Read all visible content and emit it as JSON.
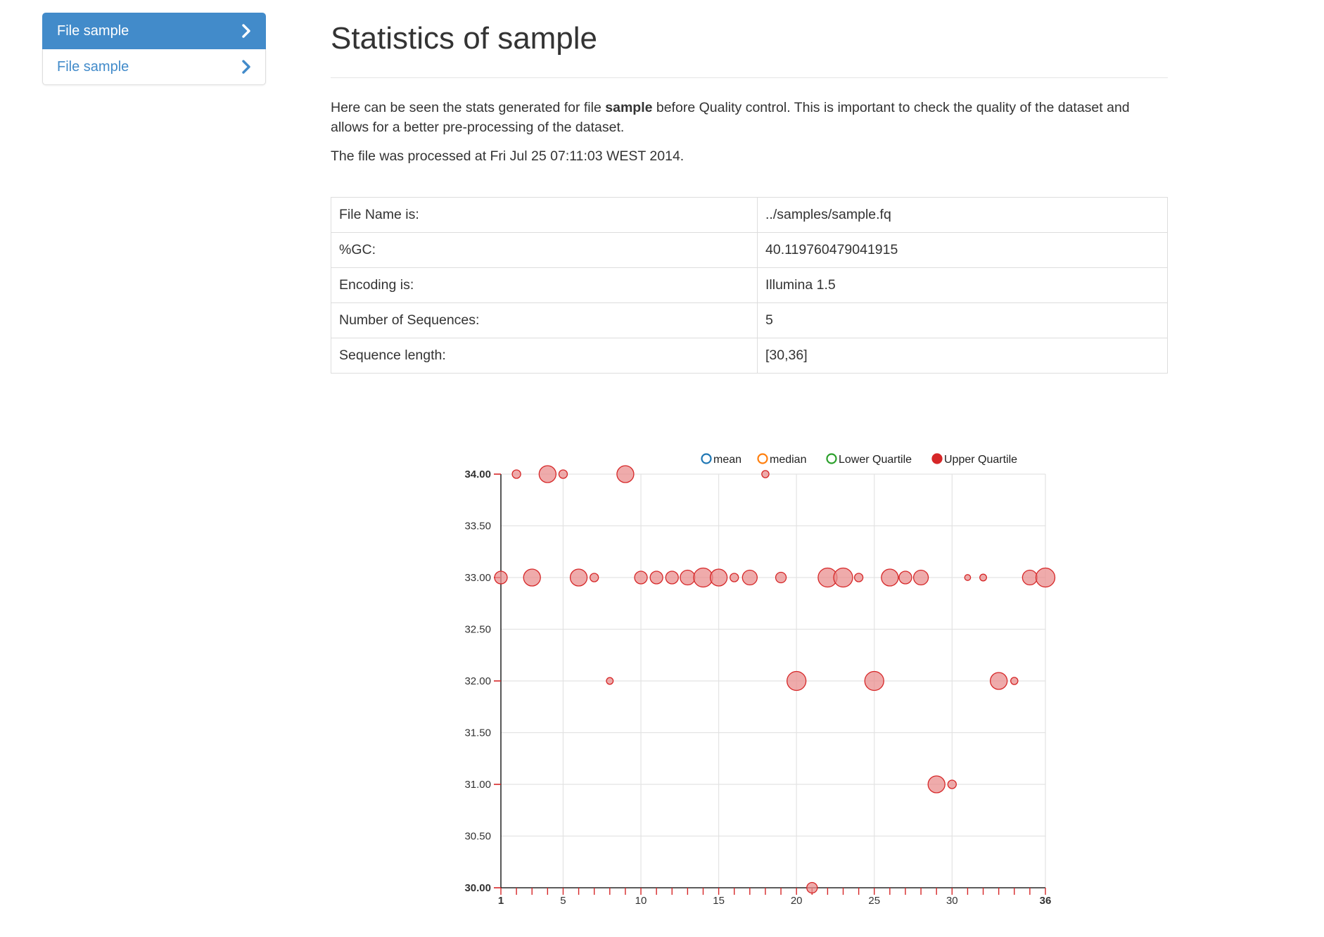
{
  "sidebar": {
    "items": [
      {
        "label": "File sample",
        "active": true
      },
      {
        "label": "File sample",
        "active": false
      }
    ]
  },
  "header": {
    "title": "Statistics of sample"
  },
  "intro": {
    "prefix": "Here can be seen the stats generated for file ",
    "filename": "sample",
    "suffix": " before Quality control. This is important to check the quality of the dataset and allows for a better pre-processing of the dataset."
  },
  "processed_text": "The file was processed at Fri Jul 25 07:11:03 WEST 2014.",
  "info_table": {
    "rows": [
      {
        "label": "File Name is:",
        "value": "../samples/sample.fq"
      },
      {
        "label": "%GC:",
        "value": "40.119760479041915"
      },
      {
        "label": "Encoding is:",
        "value": "Illumina 1.5"
      },
      {
        "label": "Number of Sequences:",
        "value": "5"
      },
      {
        "label": "Sequence length:",
        "value": "[30,36]"
      }
    ]
  },
  "colors": {
    "accent": "#428bca",
    "point_fill": "#e98f8f",
    "point_stroke": "#d62728",
    "mean": "#1f77b4",
    "median": "#ff7f0e",
    "lower_quartile": "#2ca02c",
    "upper_quartile": "#d62728"
  },
  "chart_data": {
    "type": "scatter",
    "legend": [
      {
        "name": "mean",
        "color": "#1f77b4",
        "filled": false
      },
      {
        "name": "median",
        "color": "#ff7f0e",
        "filled": false
      },
      {
        "name": "Lower Quartile",
        "color": "#2ca02c",
        "filled": false
      },
      {
        "name": "Upper Quartile",
        "color": "#d62728",
        "filled": true
      }
    ],
    "legend_position": "top-right",
    "xlim": [
      1,
      36
    ],
    "ylim": [
      30,
      34
    ],
    "x_tick_labels": [
      "1",
      "5",
      "10",
      "15",
      "20",
      "25",
      "30",
      "36"
    ],
    "x_tick_values": [
      1,
      5,
      10,
      15,
      20,
      25,
      30,
      36
    ],
    "y_tick_labels": [
      "30.00",
      "30.50",
      "31.00",
      "31.50",
      "32.00",
      "32.50",
      "33.00",
      "33.50",
      "34.00"
    ],
    "y_tick_values": [
      30,
      30.5,
      31,
      31.5,
      32,
      32.5,
      33,
      33.5,
      34
    ],
    "grid": true,
    "series": [
      {
        "name": "Upper Quartile",
        "points": [
          {
            "x": 1,
            "y": 33,
            "size": 2
          },
          {
            "x": 2,
            "y": 34,
            "size": 1
          },
          {
            "x": 3,
            "y": 33,
            "size": 3
          },
          {
            "x": 4,
            "y": 34,
            "size": 3
          },
          {
            "x": 5,
            "y": 34,
            "size": 1
          },
          {
            "x": 6,
            "y": 33,
            "size": 3
          },
          {
            "x": 7,
            "y": 33,
            "size": 1
          },
          {
            "x": 8,
            "y": 32,
            "size": 0.6
          },
          {
            "x": 9,
            "y": 34,
            "size": 3
          },
          {
            "x": 10,
            "y": 33,
            "size": 2
          },
          {
            "x": 11,
            "y": 33,
            "size": 2
          },
          {
            "x": 12,
            "y": 33,
            "size": 2
          },
          {
            "x": 13,
            "y": 33,
            "size": 2.5
          },
          {
            "x": 14,
            "y": 33,
            "size": 3.5
          },
          {
            "x": 15,
            "y": 33,
            "size": 3
          },
          {
            "x": 16,
            "y": 33,
            "size": 1
          },
          {
            "x": 17,
            "y": 33,
            "size": 2.5
          },
          {
            "x": 18,
            "y": 34,
            "size": 0.7
          },
          {
            "x": 19,
            "y": 33,
            "size": 1.5
          },
          {
            "x": 20,
            "y": 32,
            "size": 3.5
          },
          {
            "x": 21,
            "y": 30,
            "size": 1.5
          },
          {
            "x": 22,
            "y": 33,
            "size": 3.5
          },
          {
            "x": 23,
            "y": 33,
            "size": 3.5
          },
          {
            "x": 24,
            "y": 33,
            "size": 1
          },
          {
            "x": 25,
            "y": 32,
            "size": 3.5
          },
          {
            "x": 26,
            "y": 33,
            "size": 3
          },
          {
            "x": 27,
            "y": 33,
            "size": 2
          },
          {
            "x": 28,
            "y": 33,
            "size": 2.5
          },
          {
            "x": 29,
            "y": 31,
            "size": 3
          },
          {
            "x": 30,
            "y": 31,
            "size": 1
          },
          {
            "x": 31,
            "y": 33,
            "size": 0.4
          },
          {
            "x": 32,
            "y": 33,
            "size": 0.6
          },
          {
            "x": 33,
            "y": 32,
            "size": 3
          },
          {
            "x": 34,
            "y": 32,
            "size": 0.7
          },
          {
            "x": 35,
            "y": 33,
            "size": 2.5
          },
          {
            "x": 36,
            "y": 33,
            "size": 3.5
          }
        ]
      }
    ]
  }
}
